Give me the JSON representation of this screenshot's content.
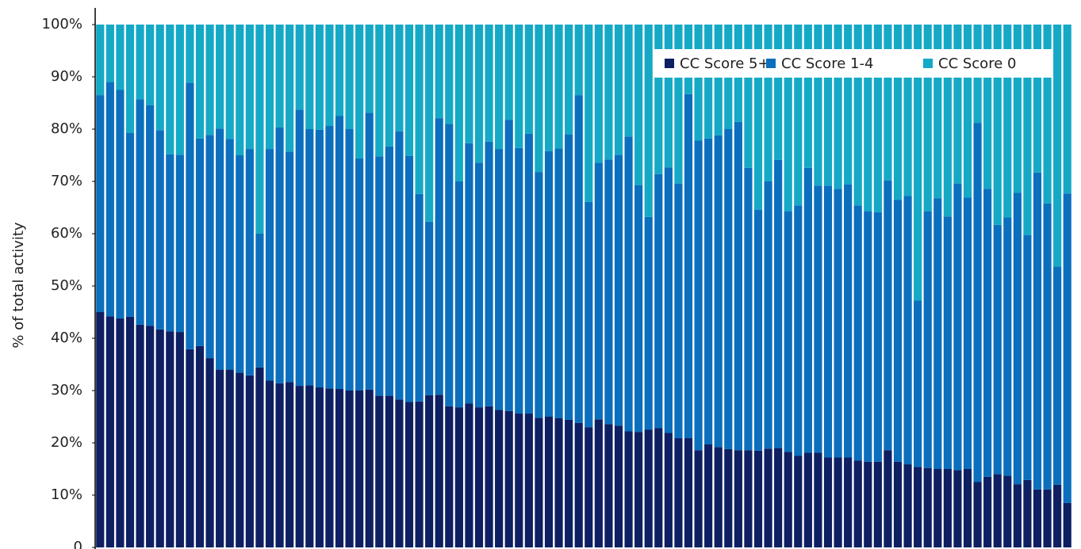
{
  "chart_data": {
    "type": "stacked_bar_100",
    "y_label": "% of total activity",
    "categories": [
      null,
      null,
      null,
      null,
      null,
      null,
      null,
      null,
      null,
      null,
      null,
      null,
      null,
      null,
      null,
      null,
      null,
      null,
      null,
      null,
      null,
      null,
      null,
      null,
      null,
      null,
      null,
      null,
      null,
      null,
      null,
      null,
      null,
      null,
      null,
      null,
      null,
      null,
      null,
      null,
      null,
      null,
      null,
      null,
      null,
      null,
      null,
      null,
      null,
      null,
      null,
      null,
      null,
      null,
      null,
      null,
      null,
      null,
      null,
      null,
      null,
      null,
      null,
      null,
      null,
      null,
      null,
      null,
      null,
      null,
      null,
      null,
      null,
      null,
      null,
      null,
      null,
      null,
      null,
      null,
      null,
      null,
      null,
      null,
      null,
      null,
      null,
      null,
      null,
      null,
      null,
      null,
      null,
      null,
      null,
      null,
      null,
      null
    ],
    "series": [
      {
        "name": "CC Score 5+",
        "color": "#0e1f62",
        "values": [
          45,
          44.2,
          43.8,
          44.1,
          42.6,
          42.4,
          41.7,
          41.3,
          41.2,
          37.9,
          38.5,
          36.2,
          34,
          34,
          33.4,
          32.9,
          34.4,
          31.9,
          31.4,
          31.6,
          30.9,
          31,
          30.6,
          30.4,
          30.3,
          30,
          30,
          30.2,
          29,
          29,
          28.3,
          27.8,
          27.9,
          29.1,
          29.2,
          27,
          26.8,
          27.5,
          26.8,
          27,
          26.3,
          26.1,
          25.6,
          25.6,
          24.8,
          25,
          24.7,
          24.4,
          23.8,
          23,
          24.5,
          23.6,
          23.3,
          22.2,
          22.1,
          22.5,
          22.8,
          21.9,
          20.9,
          20.9,
          18.6,
          19.7,
          19.2,
          18.8,
          18.6,
          18.6,
          18.5,
          18.9,
          19,
          18.3,
          17.5,
          18.1,
          18.1,
          17.2,
          17.2,
          17.2,
          16.6,
          16.4,
          16.4,
          18.6,
          16.4,
          15.9,
          15.4,
          15.2,
          15,
          15,
          14.8,
          15,
          12.5,
          13.5,
          14,
          13.7,
          12.1,
          12.9,
          11.1,
          11.1,
          12,
          8.5
        ]
      },
      {
        "name": "CC Score 1-4",
        "color": "#0b6fbd",
        "values": [
          41.5,
          44.8,
          43.7,
          35.2,
          43.1,
          42.2,
          38.1,
          33.9,
          33.9,
          51,
          39.7,
          42.7,
          46.1,
          44.1,
          41.6,
          43.3,
          25.6,
          44.3,
          48.9,
          44.1,
          52.8,
          49,
          49.3,
          50.2,
          52.2,
          50,
          44.4,
          52.9,
          45.8,
          47.7,
          51.3,
          47.1,
          39.7,
          33.2,
          52.9,
          54,
          43.2,
          49.8,
          46.8,
          50.6,
          49.9,
          55.7,
          50.8,
          53.5,
          47,
          50.8,
          51.6,
          54.6,
          62.7,
          43.1,
          49.1,
          50.6,
          51.8,
          56.4,
          47.2,
          40.7,
          48.6,
          50.8,
          48.7,
          65.8,
          59.2,
          58.5,
          59.6,
          61.2,
          62.8,
          54,
          46.1,
          51.1,
          55.1,
          46,
          47.9,
          54.5,
          51.1,
          52,
          51.4,
          52.2,
          48.8,
          47.9,
          47.7,
          51.6,
          50.1,
          51.3,
          31.8,
          49.1,
          51.8,
          48.3,
          54.8,
          51.9,
          68.7,
          55.1,
          47.7,
          49.4,
          55.7,
          46.8,
          60.6,
          54.7,
          41.7,
          59.2
        ]
      },
      {
        "name": "CC Score 0",
        "color": "#15a9c6",
        "values": [
          13.5,
          11,
          12.5,
          20.7,
          14.3,
          15.4,
          20.2,
          24.8,
          24.9,
          11.1,
          21.8,
          21.1,
          19.9,
          21.9,
          25,
          23.8,
          40,
          23.8,
          19.7,
          24.3,
          16.3,
          20,
          20.1,
          19.4,
          17.5,
          20,
          25.6,
          16.9,
          25.2,
          23.3,
          20.4,
          25.1,
          32.4,
          37.7,
          17.9,
          19,
          30,
          22.7,
          26.4,
          22.4,
          23.8,
          18.2,
          23.6,
          20.9,
          28.2,
          24.2,
          23.7,
          21,
          13.5,
          33.9,
          26.4,
          25.8,
          24.9,
          21.4,
          30.7,
          36.8,
          28.6,
          27.3,
          30.4,
          13.3,
          22.2,
          21.8,
          21.2,
          20,
          18.6,
          27.4,
          35.4,
          30,
          25.9,
          35.7,
          34.6,
          27.4,
          30.8,
          30.8,
          31.4,
          30.6,
          34.6,
          35.7,
          35.9,
          29.8,
          33.5,
          32.8,
          52.8,
          35.7,
          33.2,
          36.7,
          30.4,
          33.1,
          18.8,
          31.4,
          38.3,
          36.9,
          32.2,
          40.3,
          28.3,
          34.2,
          46.3,
          32.3
        ]
      }
    ],
    "ylim": [
      0,
      100
    ],
    "yticks": [
      0,
      {
        "value": 10,
        "label": "10%"
      },
      {
        "value": 20,
        "label": "20%"
      },
      {
        "value": 30,
        "label": "30%"
      },
      {
        "value": 40,
        "label": "40%"
      },
      {
        "value": 50,
        "label": "50%"
      },
      {
        "value": 60,
        "label": "60%"
      },
      {
        "value": 70,
        "label": "70%"
      },
      {
        "value": 80,
        "label": "80%"
      },
      {
        "value": 90,
        "label": "90%"
      },
      {
        "value": 100,
        "label": "100%"
      }
    ],
    "grid": false,
    "legend": "upper right"
  }
}
